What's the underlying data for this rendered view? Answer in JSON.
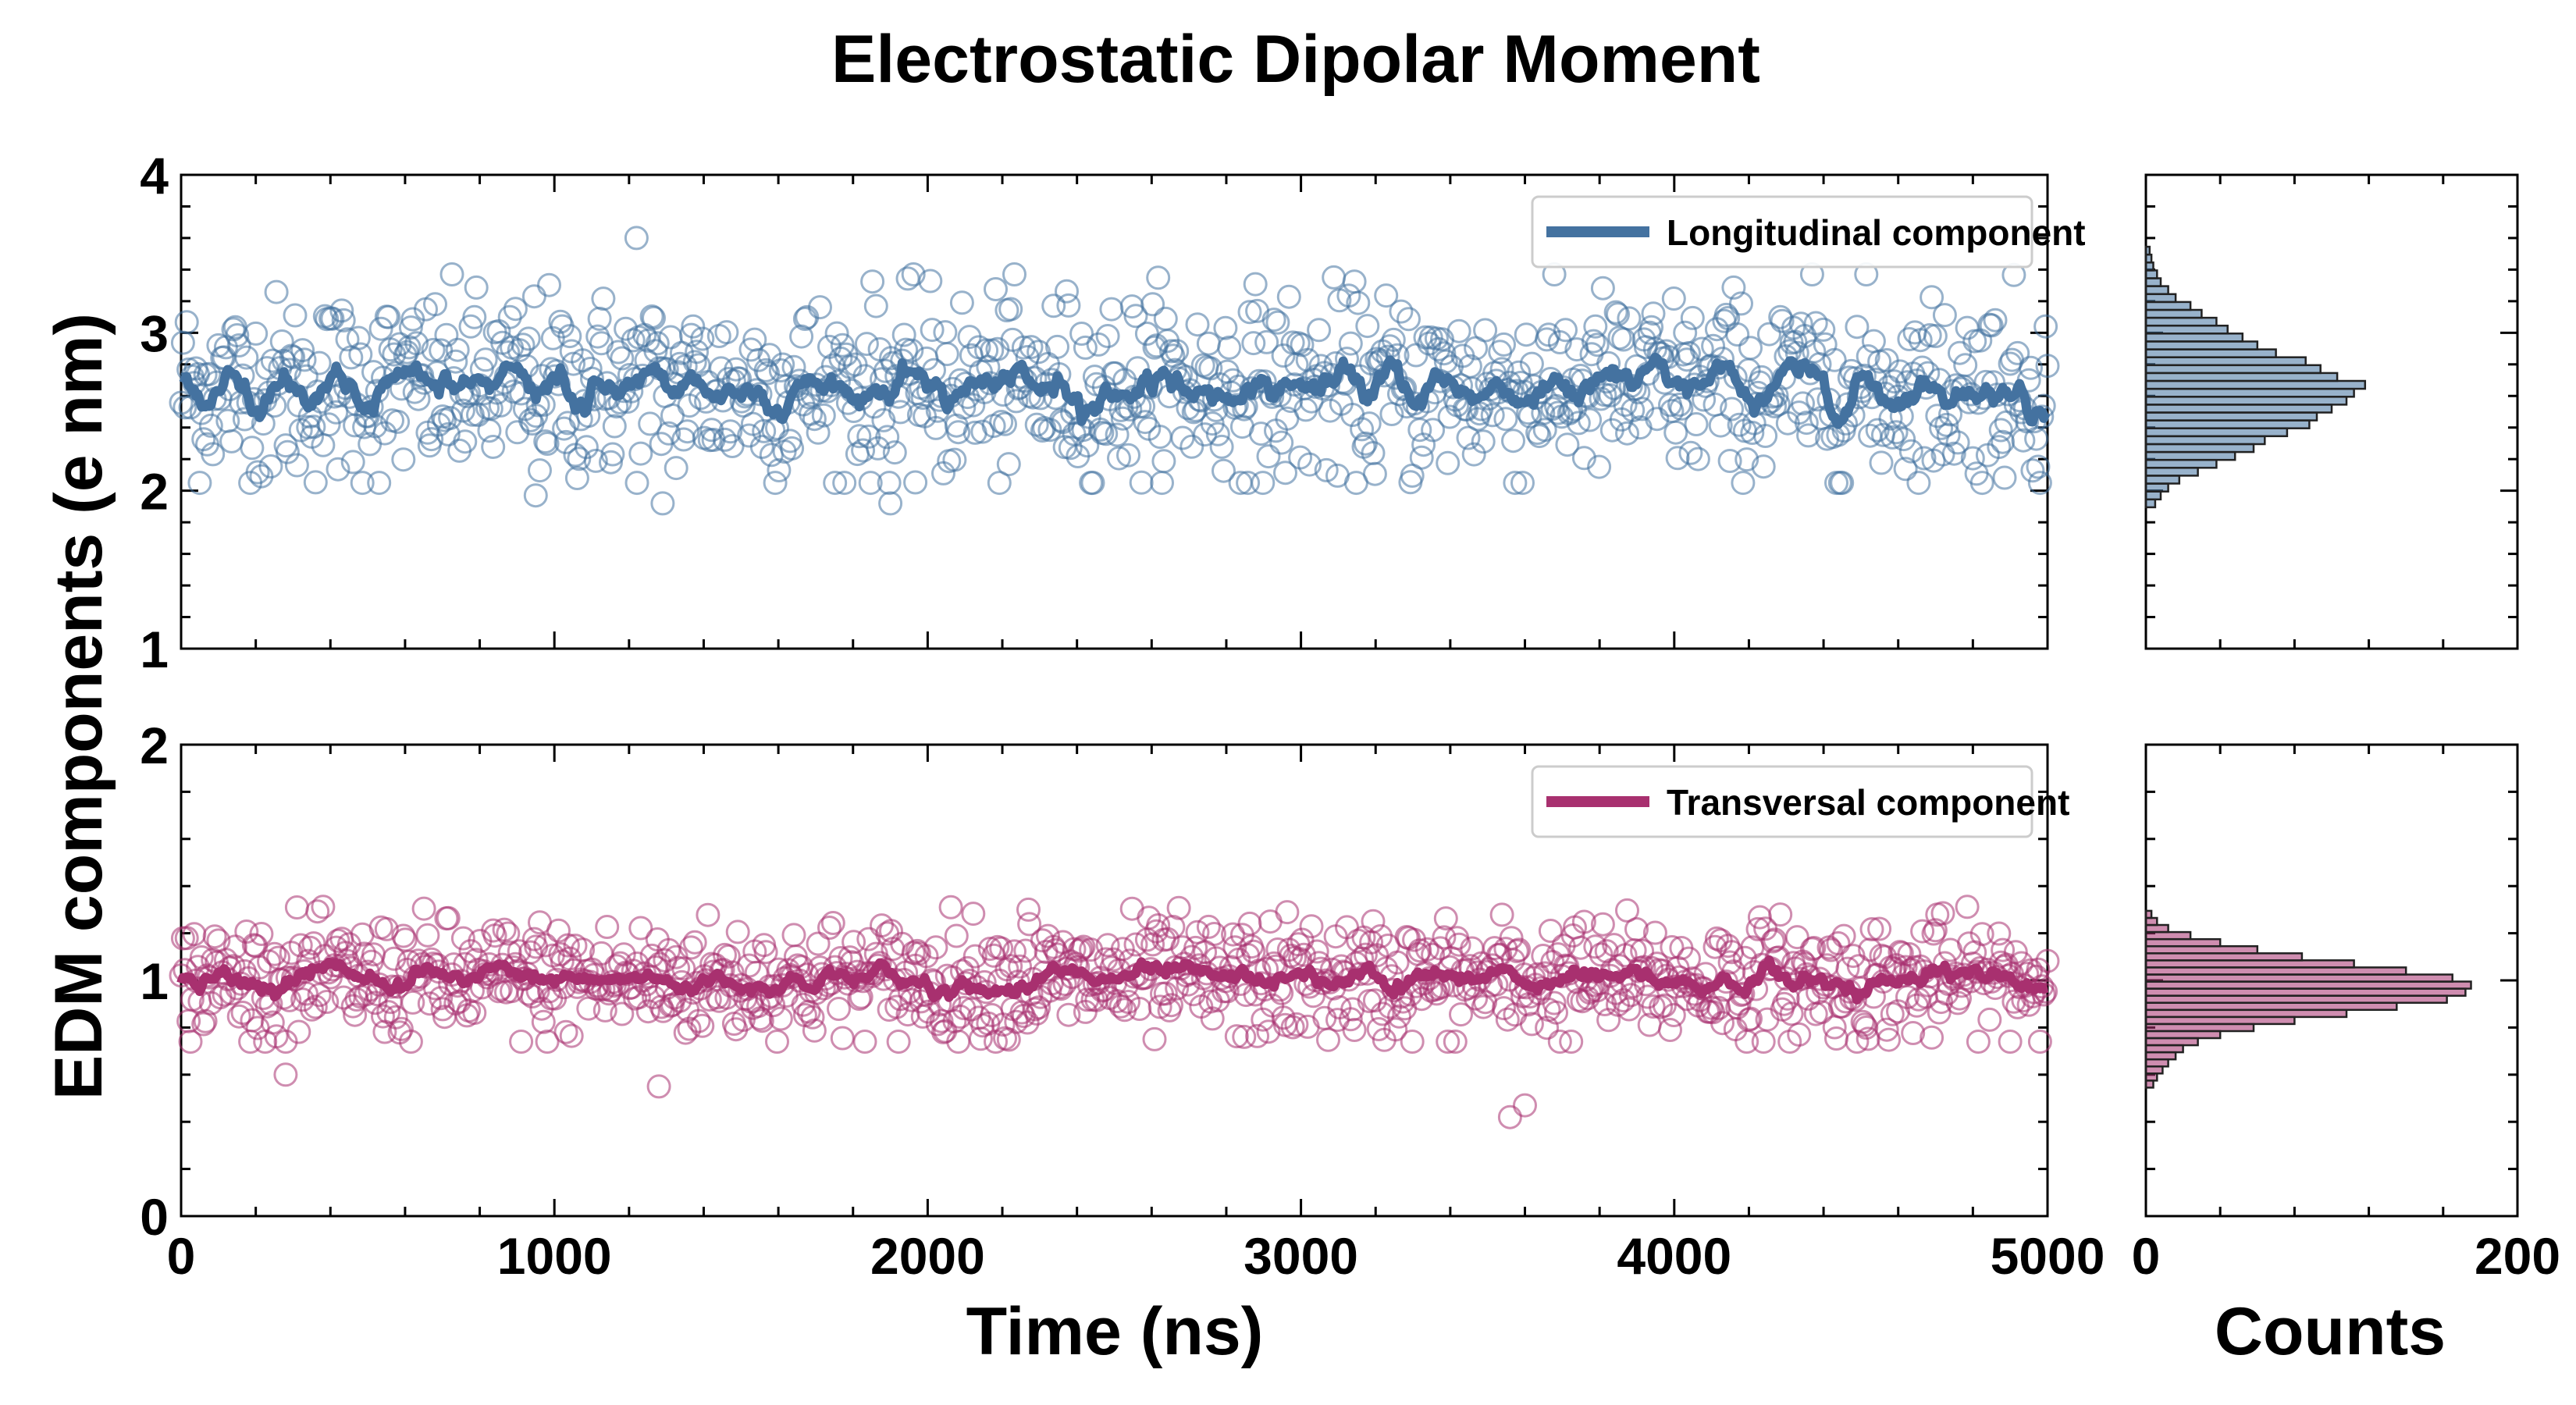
{
  "chart_data": {
    "type": "scatter",
    "title": "Electrostatic Dipolar Moment",
    "ylabel": "EDM components (e nm)",
    "xlabel": "Time (ns)",
    "hist_xlabel": "Counts",
    "xlim": [
      0,
      5000
    ],
    "x_ticks": [
      "0",
      "1000",
      "2000",
      "3000",
      "4000",
      "5000"
    ],
    "hist_xlim": [
      0,
      200
    ],
    "hist_ticks": [
      "0",
      "200"
    ],
    "n_points": 1000,
    "panels": [
      {
        "name": "top",
        "legend": "Longitudinal component",
        "color": "#4472a0",
        "ylim": [
          1,
          4
        ],
        "y_ticks": [
          "1",
          "2",
          "3",
          "4"
        ],
        "mean": 2.65,
        "std": 0.3,
        "moving_average_amplitude": 0.12,
        "outliers": [
          {
            "x": 1220,
            "y": 3.6
          },
          {
            "x": 1290,
            "y": 1.92
          },
          {
            "x": 950,
            "y": 1.97
          },
          {
            "x": 1900,
            "y": 1.92
          }
        ],
        "histogram": {
          "bin_centers": [
            1.92,
            1.97,
            2.02,
            2.07,
            2.12,
            2.17,
            2.22,
            2.27,
            2.32,
            2.37,
            2.42,
            2.47,
            2.52,
            2.57,
            2.62,
            2.67,
            2.72,
            2.77,
            2.82,
            2.87,
            2.92,
            2.97,
            3.02,
            3.07,
            3.12,
            3.17,
            3.22,
            3.27,
            3.32,
            3.37,
            3.42,
            3.47,
            3.52
          ],
          "counts": [
            5,
            8,
            12,
            18,
            28,
            38,
            48,
            58,
            64,
            76,
            88,
            92,
            100,
            108,
            112,
            118,
            103,
            94,
            86,
            70,
            60,
            52,
            44,
            38,
            30,
            24,
            16,
            12,
            8,
            6,
            4,
            3,
            2
          ]
        }
      },
      {
        "name": "bottom",
        "legend": "Transversal component",
        "color": "#a8306f",
        "ylim": [
          0,
          2
        ],
        "y_ticks": [
          "0",
          "1",
          "2"
        ],
        "mean": 1.0,
        "std": 0.13,
        "moving_average_amplitude": 0.05,
        "outliers": [
          {
            "x": 3560,
            "y": 0.42
          },
          {
            "x": 3600,
            "y": 0.47
          },
          {
            "x": 1280,
            "y": 0.55
          },
          {
            "x": 280,
            "y": 0.6
          },
          {
            "x": 2270,
            "y": 1.3
          }
        ],
        "histogram": {
          "bin_centers": [
            0.56,
            0.59,
            0.62,
            0.65,
            0.68,
            0.71,
            0.74,
            0.77,
            0.8,
            0.83,
            0.86,
            0.89,
            0.92,
            0.95,
            0.98,
            1.01,
            1.04,
            1.07,
            1.1,
            1.13,
            1.16,
            1.19,
            1.22,
            1.25,
            1.28
          ],
          "counts": [
            4,
            6,
            9,
            12,
            16,
            20,
            28,
            40,
            58,
            80,
            108,
            135,
            162,
            172,
            175,
            165,
            140,
            112,
            84,
            60,
            40,
            24,
            12,
            6,
            3
          ]
        }
      }
    ]
  }
}
